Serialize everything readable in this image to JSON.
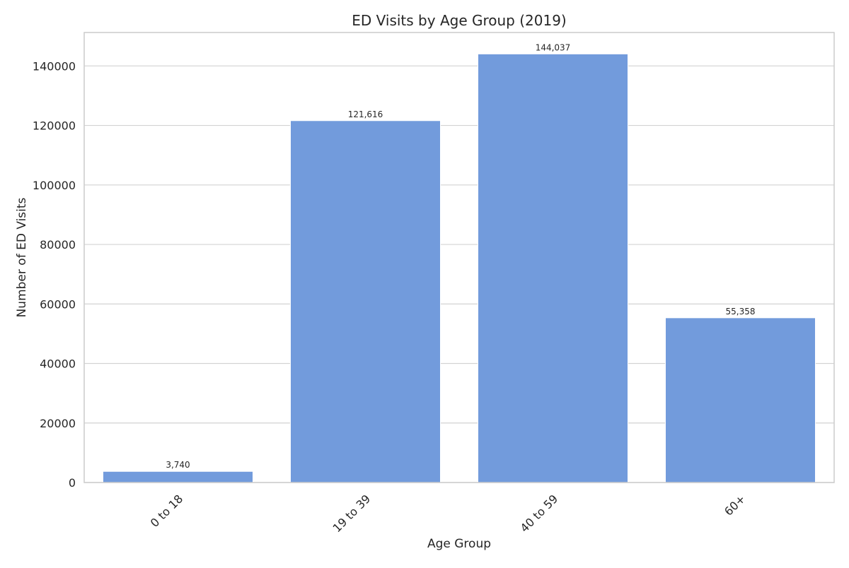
{
  "chart_data": {
    "type": "bar",
    "title": "ED Visits by Age Group (2019)",
    "xlabel": "Age Group",
    "ylabel": "Number of ED Visits",
    "categories": [
      "0 to 18",
      "19 to 39",
      "40 to 59",
      "60+"
    ],
    "values": [
      3740,
      121616,
      144037,
      55358
    ],
    "data_labels": [
      "3,740",
      "121,616",
      "144,037",
      "55,358"
    ],
    "yticks": [
      0,
      20000,
      40000,
      60000,
      80000,
      100000,
      120000,
      140000
    ],
    "ytick_labels": [
      "0",
      "20000",
      "40000",
      "60000",
      "80000",
      "100000",
      "120000",
      "140000"
    ],
    "ylim": [
      0,
      151239
    ],
    "grid": true,
    "bar_color": "#729bdc",
    "grid_color": "#d3d3d3",
    "spine_color": "#cccccc",
    "text_color": "#262626"
  }
}
